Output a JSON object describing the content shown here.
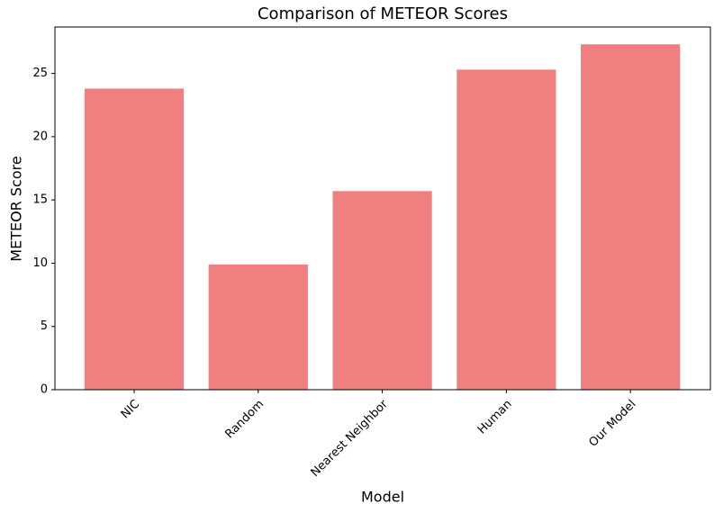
{
  "chart_data": {
    "type": "bar",
    "title": "Comparison of METEOR Scores",
    "xlabel": "Model",
    "ylabel": "METEOR Score",
    "categories": [
      "NIC",
      "Random",
      "Nearest Neighbor",
      "Human",
      "Our Model"
    ],
    "values": [
      23.8,
      9.9,
      15.7,
      25.3,
      27.3
    ],
    "color": "#f08080",
    "ylim": [
      0,
      28.67
    ],
    "yticks": [
      0,
      5,
      10,
      15,
      20,
      25
    ],
    "grid": false
  }
}
